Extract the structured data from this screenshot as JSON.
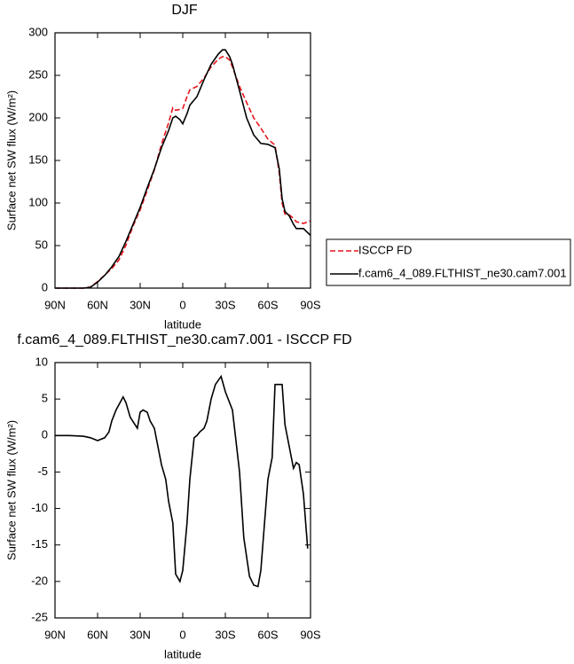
{
  "chart_data": [
    {
      "type": "line",
      "title": "DJF",
      "x_label": "latitude",
      "y_label": "Surface net SW flux (W/m²)",
      "x": [
        90,
        80,
        70,
        65,
        60,
        55,
        50,
        45,
        40,
        35,
        30,
        25,
        20,
        15,
        10,
        7,
        5,
        2,
        0,
        -3,
        -5,
        -10,
        -15,
        -20,
        -25,
        -28,
        -30,
        -33,
        -35,
        -40,
        -45,
        -50,
        -55,
        -60,
        -65,
        -68,
        -70,
        -72,
        -75,
        -78,
        -80,
        -85,
        -90
      ],
      "series": [
        {
          "name": "ISCCP FD",
          "color": "#e8141b",
          "dash": true,
          "values": [
            0,
            0,
            0,
            1.3,
            7.7,
            15.3,
            23,
            33,
            50.5,
            73,
            92,
            115,
            139,
            169,
            194,
            212,
            209,
            210,
            211,
            225,
            233,
            237,
            247,
            260,
            269,
            272,
            272,
            268,
            260,
            237,
            218,
            200,
            188,
            175,
            168,
            135,
            100,
            87,
            86,
            82,
            78,
            76,
            79
          ]
        },
        {
          "name": "f.cam6_4_089.FLTHIST_ne30.cam7.001",
          "color": "#000000",
          "dash": false,
          "values": [
            0,
            0,
            0,
            1,
            7,
            15,
            25,
            37,
            55,
            75,
            95,
            118,
            140,
            165,
            185,
            200,
            202,
            198,
            193,
            205,
            215,
            225,
            245,
            263,
            275,
            280,
            280,
            272,
            263,
            232,
            200,
            180,
            170,
            169,
            165,
            140,
            105,
            90,
            85,
            75,
            70,
            70,
            62
          ]
        }
      ],
      "xlim": [
        90,
        -90
      ],
      "xticks": [
        {
          "value": 90,
          "label": "90N"
        },
        {
          "value": 60,
          "label": "60N"
        },
        {
          "value": 30,
          "label": "30N"
        },
        0,
        {
          "value": -30,
          "label": "30S"
        },
        {
          "value": -60,
          "label": "60S"
        },
        {
          "value": -90,
          "label": "90S"
        }
      ],
      "ylim": [
        0,
        300
      ],
      "yticks": [
        0,
        50,
        100,
        150,
        200,
        250,
        300
      ],
      "legend": "right"
    },
    {
      "type": "line",
      "title": "f.cam6_4_089.FLTHIST_ne30.cam7.001 - ISCCP FD",
      "x_label": "latitude",
      "y_label": "Surface net SW flux (W/m²)",
      "x": [
        90,
        80,
        70,
        65,
        60,
        55,
        52,
        50,
        47,
        42,
        40,
        37,
        32,
        30,
        28,
        25,
        23,
        20,
        17,
        15,
        12,
        10,
        7,
        5,
        2,
        0,
        -3,
        -5,
        -8,
        -10,
        -12,
        -15,
        -17,
        -20,
        -23,
        -27,
        -30,
        -35,
        -40,
        -43,
        -47,
        -50,
        -53,
        -55,
        -60,
        -63,
        -65,
        -70,
        -72,
        -75,
        -78,
        -80,
        -82,
        -85,
        -88
      ],
      "series": [
        {
          "color": "#000000",
          "dash": false,
          "values": [
            0,
            0,
            -0.1,
            -0.3,
            -0.7,
            -0.3,
            0.5,
            2,
            3.5,
            5.3,
            4.5,
            2.5,
            1,
            3.2,
            3.5,
            3.2,
            2,
            1,
            -2,
            -4,
            -6,
            -9,
            -12,
            -19,
            -20,
            -18.5,
            -12,
            -6,
            -0.3,
            0,
            0.5,
            1,
            2,
            5,
            7,
            8.1,
            6,
            3.5,
            -5,
            -14,
            -19.3,
            -20.5,
            -20.7,
            -18.5,
            -6,
            -3,
            7,
            7,
            1.5,
            -1.5,
            -4.5,
            -3.7,
            -4,
            -8,
            -15.5
          ]
        }
      ],
      "xlim": [
        90,
        -90
      ],
      "xticks": [
        {
          "value": 90,
          "label": "90N"
        },
        {
          "value": 60,
          "label": "60N"
        },
        {
          "value": 30,
          "label": "30N"
        },
        0,
        {
          "value": -30,
          "label": "30S"
        },
        {
          "value": -60,
          "label": "60S"
        },
        {
          "value": -90,
          "label": "90S"
        }
      ],
      "ylim": [
        -25,
        10
      ],
      "yticks": [
        -25,
        -20,
        -15,
        -10,
        -5,
        0,
        5,
        10
      ]
    }
  ]
}
